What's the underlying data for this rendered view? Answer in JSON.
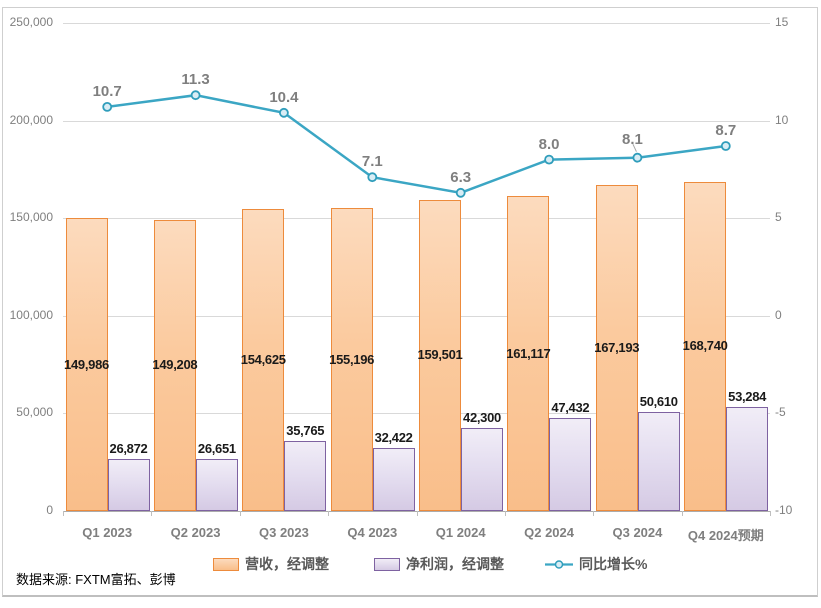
{
  "chart_data": {
    "type": "combo",
    "categories": [
      "Q1 2023",
      "Q2 2023",
      "Q3 2023",
      "Q4 2023",
      "Q1 2024",
      "Q2 2024",
      "Q3 2024",
      "Q4 2024预期"
    ],
    "series": [
      {
        "name": "营收，经调整",
        "type": "bar",
        "axis": "left",
        "values": [
          149986,
          149208,
          154625,
          155196,
          159501,
          161117,
          167193,
          168740
        ],
        "labels": [
          "149,986",
          "149,208",
          "154,625",
          "155,196",
          "159,501",
          "161,117",
          "167,193",
          "168,740"
        ],
        "fill": "#FBCA9E",
        "border": "#ED8B3C"
      },
      {
        "name": "净利润，经调整",
        "type": "bar",
        "axis": "left",
        "values": [
          26872,
          26651,
          35765,
          32422,
          42300,
          47432,
          50610,
          53284
        ],
        "labels": [
          "26,872",
          "26,651",
          "35,765",
          "32,422",
          "42,300",
          "47,432",
          "50,610",
          "53,284"
        ],
        "fill": "#E3DCEF",
        "border": "#7E62A1"
      },
      {
        "name": "同比增长%",
        "type": "line",
        "axis": "right",
        "values": [
          10.7,
          11.3,
          10.4,
          7.1,
          6.3,
          8.0,
          8.1,
          8.7
        ],
        "labels": [
          "10.7",
          "11.3",
          "10.4",
          "7.1",
          "6.3",
          "8.0",
          "8.1",
          "8.7"
        ],
        "color": "#3BA6C4",
        "marker_fill": "#D9EDF5",
        "marker_border": "#2F9DBB"
      }
    ],
    "left_axis": {
      "min": 0,
      "max": 250000,
      "ticks": [
        "250,000",
        "200,000",
        "150,000",
        "100,000",
        "50,000",
        "0"
      ]
    },
    "right_axis": {
      "min": -10,
      "max": 15,
      "ticks": [
        "15",
        "10",
        "5",
        "0",
        "-5",
        "-10"
      ]
    },
    "grid": true,
    "legend_position": "bottom",
    "source": "数据来源: FXTM富拓、彭博",
    "colors": {
      "grid": "#D9D9D9",
      "axis_line": "#ACACAC",
      "axis_text": "#7F7F7F",
      "category_text": "#7F7F7F",
      "bar_label_text": "#1A1A1A",
      "growth_label_text": "#7F7F7F",
      "legend_text": "#595959"
    }
  }
}
